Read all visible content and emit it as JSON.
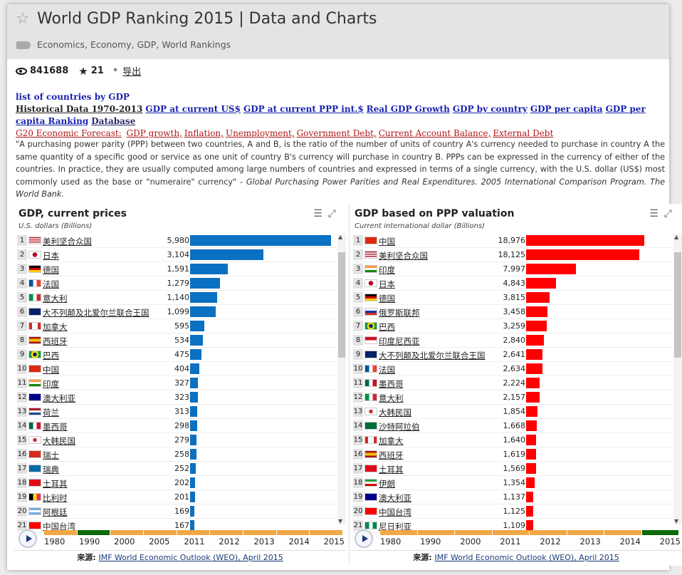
{
  "header": {
    "title": "World GDP Ranking 2015 | Data and Charts",
    "tags": "Economics, Economy, GDP, World Rankings"
  },
  "stats": {
    "views": "841688",
    "stars": "21",
    "export_label": "导出"
  },
  "links": {
    "heading": "list of countries by GDP",
    "row2": [
      "Historical Data 1970-2013",
      "GDP at current US$",
      "GDP at current PPP int.$",
      "Real GDP Growth",
      "GDP by country",
      "GDP per capita",
      "GDP per capita Ranking",
      "Database"
    ],
    "row3_prefix": "G20 Economic Forecast:",
    "row3": [
      "GDP growth,",
      "Inflation,",
      "Unemployment,",
      "Government Debt,",
      "Current Account Balance,",
      "External Debt"
    ]
  },
  "quote": {
    "text": "\"A purchasing power parity (PPP) between two countries, A and B, is the ratio of the number of units of country A's currency needed to purchase in country A the same quantity of a specific good or service as one unit of country B's currency will purchase in country B. PPPs can be expressed in the currency of either of the countries. In practice, they are usually computed among large numbers of countries and expressed in terms of a single currency, with the U.S. dollar (US$) most commonly used as the base or \"numeraire\" currency\" - ",
    "citation": "Global Purchasing Power Parities and Real Expenditures. 2005 International Comparison Program. The World Bank."
  },
  "colors": {
    "left_bar": "#0a70c2",
    "right_bar": "#ff0000",
    "timeline": "#f2a844",
    "timeline_active": "#0b6a0b"
  },
  "panels": {
    "left": {
      "title": "GDP, current prices",
      "subtitle": "U.S. dollars (Billions)",
      "active_year": "1990",
      "years": [
        "1980",
        "1990",
        "2000",
        "2005",
        "2011",
        "2012",
        "2013",
        "2014",
        "2015"
      ]
    },
    "right": {
      "title": "GDP based on PPP valuation",
      "subtitle": "Current international dollar (Billions)",
      "active_year": "2015",
      "years": [
        "1980",
        "1990",
        "2000",
        "2011",
        "2012",
        "2013",
        "2014",
        "2015"
      ]
    },
    "source_label": "来源:",
    "source_link": "IMF World Economic Outlook (WEO), April 2015"
  },
  "chart_data": [
    {
      "type": "bar",
      "title": "GDP, current prices",
      "subtitle": "U.S. dollars (Billions)",
      "categories": [
        "美利坚合众国",
        "日本",
        "德国",
        "法国",
        "意大利",
        "大不列颠及北爱尔兰联合王国",
        "加拿大",
        "西班牙",
        "巴西",
        "中国",
        "印度",
        "澳大利亚",
        "荷兰",
        "墨西哥",
        "大韩民国",
        "瑞士",
        "瑞典",
        "土耳其",
        "比利时",
        "阿根廷",
        "中国台湾"
      ],
      "labels": [
        "5,980",
        "3,104",
        "1,591",
        "1,279",
        "1,140",
        "1,099",
        "595",
        "534",
        "475",
        "404",
        "327",
        "323",
        "313",
        "298",
        "279",
        "258",
        "252",
        "202",
        "201",
        "169",
        "167"
      ],
      "values": [
        5980,
        3104,
        1591,
        1279,
        1140,
        1099,
        595,
        534,
        475,
        404,
        327,
        323,
        313,
        298,
        279,
        258,
        252,
        202,
        201,
        169,
        167
      ],
      "flags": [
        "us",
        "jp",
        "de",
        "fr",
        "it",
        "gb",
        "ca",
        "es",
        "br",
        "cn",
        "in",
        "au",
        "nl",
        "mx",
        "kr",
        "ch",
        "se",
        "tr",
        "be",
        "ar",
        "tw"
      ],
      "max": 5980
    },
    {
      "type": "bar",
      "title": "GDP based on PPP valuation",
      "subtitle": "Current international dollar (Billions)",
      "categories": [
        "中国",
        "美利坚合众国",
        "印度",
        "日本",
        "德国",
        "俄罗斯联邦",
        "巴西",
        "印度尼西亚",
        "大不列颠及北爱尔兰联合王国",
        "法国",
        "墨西哥",
        "意大利",
        "大韩民国",
        "沙特阿拉伯",
        "加拿大",
        "西班牙",
        "土耳其",
        "伊朗",
        "澳大利亚",
        "中国台湾",
        "尼日利亚"
      ],
      "labels": [
        "18,976",
        "18,125",
        "7,997",
        "4,843",
        "3,815",
        "3,458",
        "3,259",
        "2,840",
        "2,641",
        "2,634",
        "2,224",
        "2,157",
        "1,854",
        "1,668",
        "1,640",
        "1,619",
        "1,569",
        "1,354",
        "1,137",
        "1,125",
        "1,109"
      ],
      "values": [
        18976,
        18125,
        7997,
        4843,
        3815,
        3458,
        3259,
        2840,
        2641,
        2634,
        2224,
        2157,
        1854,
        1668,
        1640,
        1619,
        1569,
        1354,
        1137,
        1125,
        1109
      ],
      "flags": [
        "cn",
        "us",
        "in",
        "jp",
        "de",
        "ru",
        "br",
        "id",
        "gb",
        "fr",
        "mx",
        "it",
        "kr",
        "sa",
        "ca",
        "es",
        "tr",
        "ir",
        "au",
        "tw",
        "ng"
      ],
      "max": 18976
    }
  ]
}
